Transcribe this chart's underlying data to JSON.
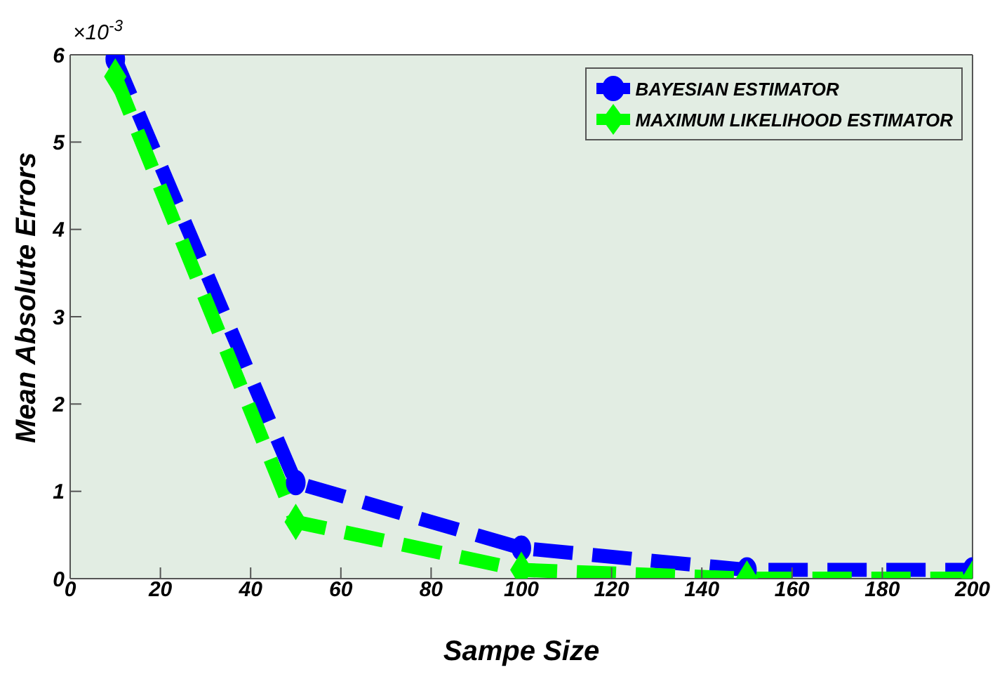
{
  "chart_data": {
    "type": "line",
    "xlabel": "Sampe Size",
    "ylabel": "Mean Absolute Errors",
    "x": [
      10,
      50,
      100,
      150,
      200
    ],
    "series": [
      {
        "name": "BAYESIAN ESTIMATOR",
        "color": "#0000ff",
        "marker": "circle",
        "values": [
          5.95,
          1.1,
          0.35,
          0.1,
          0.1
        ]
      },
      {
        "name": "MAXIMUM LIKELIHOOD ESTIMATOR",
        "color": "#00ff00",
        "marker": "diamond",
        "values": [
          5.75,
          0.65,
          0.1,
          0,
          0
        ]
      }
    ],
    "xlim": [
      0,
      200
    ],
    "xticks": [
      0,
      20,
      40,
      60,
      80,
      100,
      120,
      140,
      160,
      180,
      200
    ],
    "ylim": [
      0,
      6
    ],
    "yticks": [
      0,
      1,
      2,
      3,
      4,
      5,
      6
    ],
    "annotations": [
      "×10$^{-3}$"
    ],
    "line_style": "dashed",
    "grid": false,
    "legend": "top right"
  }
}
